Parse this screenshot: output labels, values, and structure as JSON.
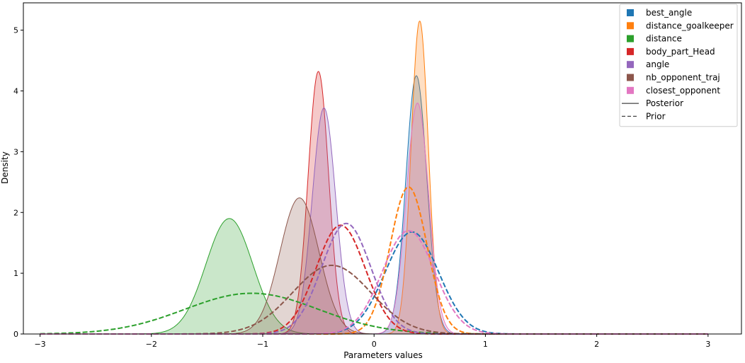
{
  "chart_data": {
    "type": "area",
    "title": "",
    "xlabel": "Parameters values",
    "ylabel": "Density",
    "xlim": [
      -3.15,
      3.3
    ],
    "ylim": [
      0,
      5.45
    ],
    "grid": false,
    "legend_placement": "top-right",
    "x_ticks": [
      "−3",
      "−2",
      "−1",
      "0",
      "1",
      "2",
      "3"
    ],
    "y_ticks": [
      "0",
      "1",
      "2",
      "3",
      "4",
      "5"
    ],
    "series": [
      {
        "name": "best_angle",
        "color": "#1f77b4",
        "posterior": {
          "mean": 0.38,
          "sd": 0.094,
          "peak": 4.25
        },
        "prior": {
          "mean": 0.34,
          "sd": 0.24,
          "peak": 1.68
        }
      },
      {
        "name": "distance_goalkeeper",
        "color": "#ff7f0e",
        "posterior": {
          "mean": 0.41,
          "sd": 0.077,
          "peak": 5.15
        },
        "prior": {
          "mean": 0.31,
          "sd": 0.165,
          "peak": 2.42
        }
      },
      {
        "name": "distance",
        "color": "#2ca02c",
        "posterior": {
          "mean": -1.3,
          "sd": 0.21,
          "peak": 1.9
        },
        "prior": {
          "mean": -1.1,
          "sd": 0.6,
          "peak": 0.67
        }
      },
      {
        "name": "body_part_Head",
        "color": "#d62728",
        "posterior": {
          "mean": -0.5,
          "sd": 0.092,
          "peak": 4.32
        },
        "prior": {
          "mean": -0.3,
          "sd": 0.22,
          "peak": 1.79
        }
      },
      {
        "name": "angle",
        "color": "#9467bd",
        "posterior": {
          "mean": -0.45,
          "sd": 0.105,
          "peak": 3.72
        },
        "prior": {
          "mean": -0.25,
          "sd": 0.22,
          "peak": 1.82
        }
      },
      {
        "name": "nb_opponent_traj",
        "color": "#8c564b",
        "posterior": {
          "mean": -0.67,
          "sd": 0.175,
          "peak": 2.24
        },
        "prior": {
          "mean": -0.38,
          "sd": 0.35,
          "peak": 1.13
        }
      },
      {
        "name": "closest_opponent",
        "color": "#e377c2",
        "posterior": {
          "mean": 0.39,
          "sd": 0.1,
          "peak": 3.8
        },
        "prior": {
          "mean": 0.31,
          "sd": 0.235,
          "peak": 1.7
        }
      }
    ],
    "legend_extra": [
      {
        "label": "Posterior",
        "style": "solid",
        "color": "#444444"
      },
      {
        "label": "Prior",
        "style": "dashed",
        "color": "#444444"
      }
    ]
  }
}
